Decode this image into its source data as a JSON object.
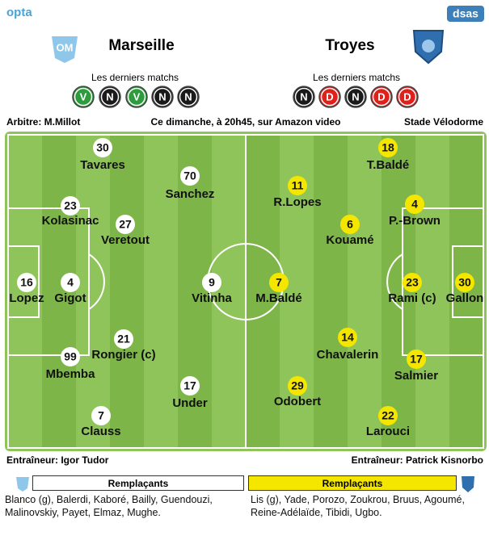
{
  "header": {
    "brand": "opta",
    "logo": "dsas"
  },
  "home": {
    "name": "Marseille",
    "form_label": "Les derniers matchs",
    "form": [
      {
        "result": "V",
        "color": "#2e9b3c"
      },
      {
        "result": "N",
        "color": "#1a1a1a"
      },
      {
        "result": "V",
        "color": "#2e9b3c"
      },
      {
        "result": "N",
        "color": "#1a1a1a"
      },
      {
        "result": "N",
        "color": "#1a1a1a"
      }
    ],
    "players": [
      {
        "number": 30,
        "name": "Tavares"
      },
      {
        "number": 70,
        "name": "Sanchez"
      },
      {
        "number": 23,
        "name": "Kolasinac"
      },
      {
        "number": 27,
        "name": "Veretout"
      },
      {
        "number": 16,
        "name": "Lopez"
      },
      {
        "number": 4,
        "name": "Gigot"
      },
      {
        "number": 9,
        "name": "Vitinha"
      },
      {
        "number": 21,
        "name": "Rongier (c)"
      },
      {
        "number": 99,
        "name": "Mbemba"
      },
      {
        "number": 17,
        "name": "Under"
      },
      {
        "number": 7,
        "name": "Clauss"
      }
    ],
    "coach": "Entraîneur: Igor Tudor",
    "subs_label": "Remplaçants",
    "subs": "Blanco (g), Balerdi, Kaboré, Bailly, Guendouzi, Malinovskiy, Payet, Elmaz, Mughe."
  },
  "away": {
    "name": "Troyes",
    "form_label": "Les derniers matchs",
    "form": [
      {
        "result": "N",
        "color": "#1a1a1a"
      },
      {
        "result": "D",
        "color": "#e0201b"
      },
      {
        "result": "N",
        "color": "#1a1a1a"
      },
      {
        "result": "D",
        "color": "#e0201b"
      },
      {
        "result": "D",
        "color": "#e0201b"
      }
    ],
    "players": [
      {
        "number": 18,
        "name": "T.Baldé"
      },
      {
        "number": 11,
        "name": "R.Lopes"
      },
      {
        "number": 4,
        "name": "P.-Brown"
      },
      {
        "number": 6,
        "name": "Kouamé"
      },
      {
        "number": 7,
        "name": "M.Baldé"
      },
      {
        "number": 23,
        "name": "Rami (c)"
      },
      {
        "number": 30,
        "name": "Gallon"
      },
      {
        "number": 14,
        "name": "Chavalerin"
      },
      {
        "number": 17,
        "name": "Salmier"
      },
      {
        "number": 29,
        "name": "Odobert"
      },
      {
        "number": 22,
        "name": "Larouci"
      }
    ],
    "coach": "Entraîneur: Patrick Kisnorbo",
    "subs_label": "Remplaçants",
    "subs": "Lis (g), Yade, Porozo, Zoukrou, Bruus, Agoumé, Reine-Adélaïde, Tibidi, Ugbo."
  },
  "match_info": {
    "referee": "Arbitre: M.Millot",
    "broadcast": "Ce dimanche, à 20h45, sur Amazon video",
    "venue": "Stade Vélodorme"
  }
}
